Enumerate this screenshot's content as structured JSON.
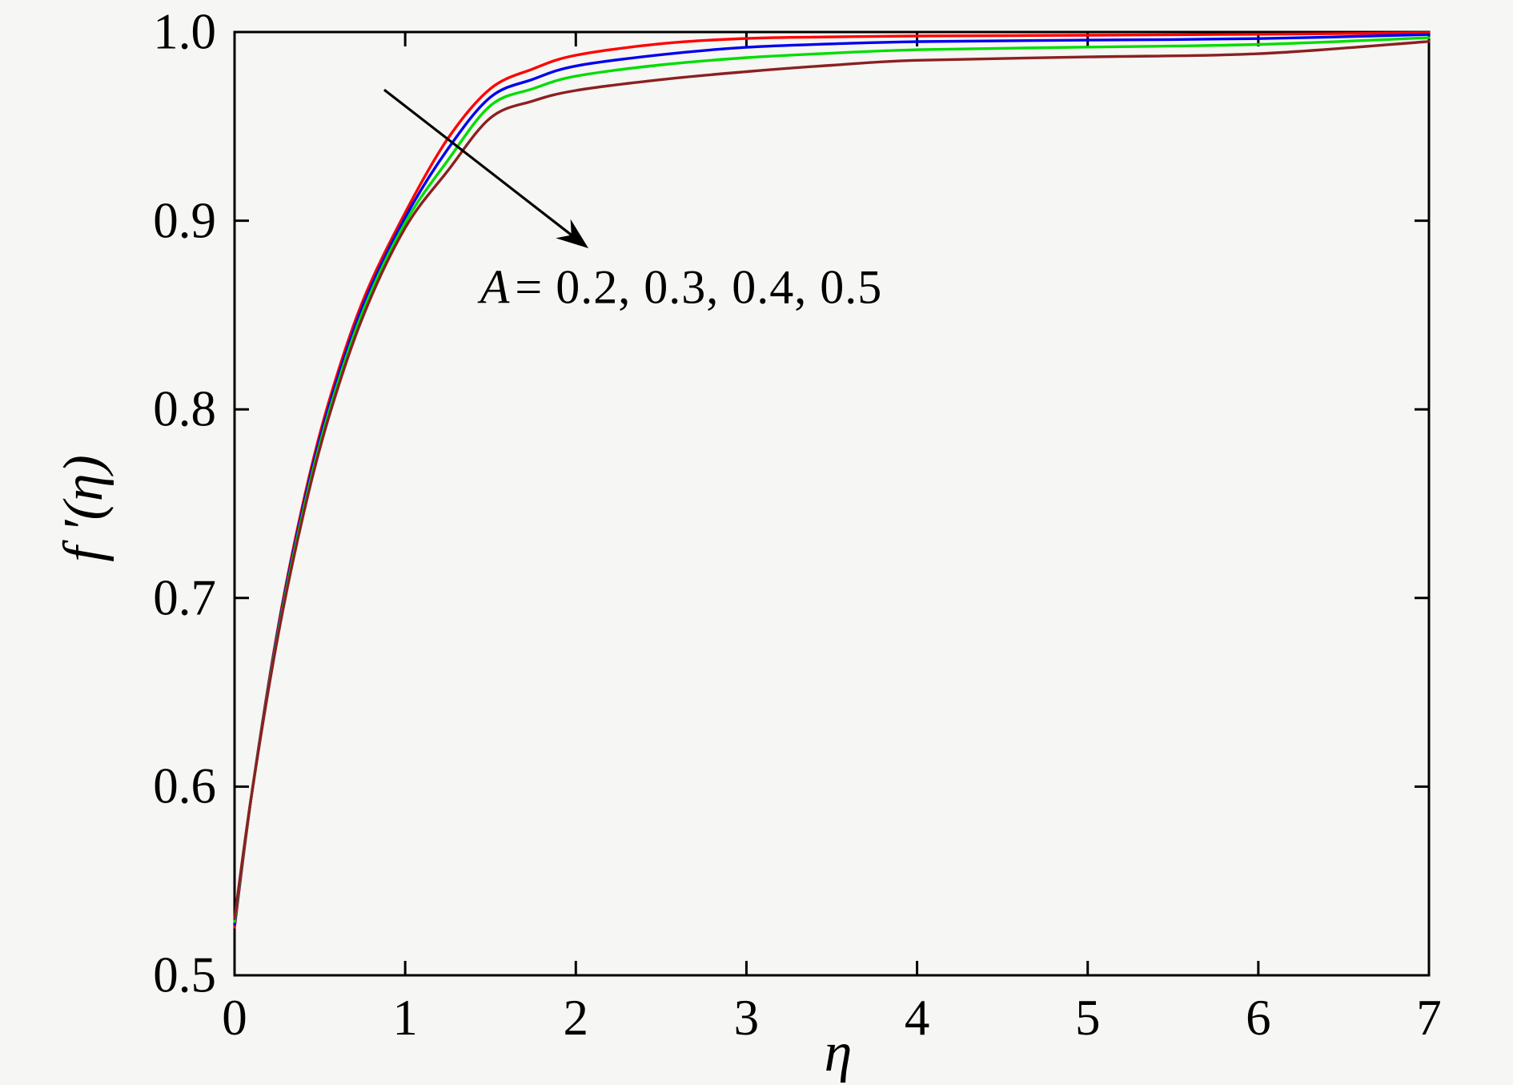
{
  "figure": {
    "background": "#f6f6f4",
    "axes_color": "#000000",
    "frame": "box with inward tick marks on all four sides, no grid"
  },
  "chart_data": {
    "type": "line",
    "title": "",
    "xlabel": "η",
    "ylabel": "f ′(η)",
    "xlim": [
      0,
      7
    ],
    "ylim": [
      0.5,
      1.0
    ],
    "x_ticks": [
      0,
      1,
      2,
      3,
      4,
      5,
      6,
      7
    ],
    "x_tick_labels": [
      "0",
      "1",
      "2",
      "3",
      "4",
      "5",
      "6",
      "7"
    ],
    "y_ticks": [
      0.5,
      0.6,
      0.7,
      0.8,
      0.9,
      1.0
    ],
    "y_tick_labels": [
      "0.5",
      "0.6",
      "0.7",
      "0.8",
      "0.9",
      "1.0"
    ],
    "grid": false,
    "legend_position": "none",
    "annotation": {
      "var": "A",
      "rest": "= 0.2, 0.3, 0.4, 0.5",
      "full_text": "A = 0.2, 0.3, 0.4, 0.5"
    },
    "arrow": {
      "from_data": [
        0.877,
        0.9694
      ],
      "to_data": [
        2.074,
        0.8854
      ],
      "meaning": "direction of increasing A"
    },
    "x": [
      0,
      0.1,
      0.25,
      0.4,
      0.55,
      0.75,
      1.0,
      1.25,
      1.5,
      1.75,
      2.0,
      2.5,
      3.0,
      3.5,
      4.0,
      5.0,
      6.0,
      7.0
    ],
    "series": [
      {
        "name": "A = 0.2",
        "color": "#ff0000",
        "values": [
          0.5255,
          0.5956,
          0.6819,
          0.7498,
          0.8032,
          0.8571,
          0.9042,
          0.9435,
          0.97,
          0.9805,
          0.9877,
          0.9938,
          0.9966,
          0.9974,
          0.9979,
          0.9983,
          0.9988,
          0.9996
        ]
      },
      {
        "name": "A = 0.3",
        "color": "#0000ee",
        "values": [
          0.527,
          0.5957,
          0.6805,
          0.7476,
          0.8005,
          0.8543,
          0.9016,
          0.938,
          0.9655,
          0.975,
          0.982,
          0.988,
          0.9919,
          0.9937,
          0.9949,
          0.9957,
          0.9965,
          0.9987
        ]
      },
      {
        "name": "A = 0.4",
        "color": "#00dd00",
        "values": [
          0.5285,
          0.5958,
          0.679,
          0.7452,
          0.7977,
          0.8515,
          0.8989,
          0.932,
          0.961,
          0.97,
          0.9766,
          0.9826,
          0.9864,
          0.9888,
          0.9906,
          0.992,
          0.9934,
          0.997
        ]
      },
      {
        "name": "A = 0.5",
        "color": "#8b2020",
        "values": [
          0.53,
          0.5958,
          0.6777,
          0.743,
          0.7951,
          0.8486,
          0.8962,
          0.9265,
          0.9545,
          0.9635,
          0.969,
          0.9748,
          0.979,
          0.9824,
          0.985,
          0.9868,
          0.9885,
          0.995
        ]
      }
    ]
  }
}
